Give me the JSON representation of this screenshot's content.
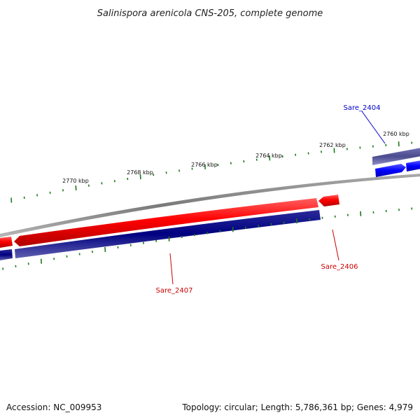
{
  "title": "Salinispora arenicola CNS-205, complete genome",
  "footer": {
    "accession": "Accession: NC_009953",
    "summary": "Topology: circular; Length: 5,786,361 bp; Genes: 4,979"
  },
  "scale_labels": [
    "2760 kbp",
    "2762 kbp",
    "2764 kbp",
    "2766 kbp",
    "2768 kbp",
    "2770 kbp"
  ],
  "genes": [
    {
      "name": "Sare_2404",
      "color": "#0000cc"
    },
    {
      "name": "Sare_2406",
      "color": "#cc0000"
    },
    {
      "name": "Sare_2407",
      "color": "#cc0000"
    }
  ],
  "colors": {
    "forward_gene": "#ff0000",
    "reverse_gene": "#000080",
    "forward_gene_alt": "#0000ff",
    "reverse_gene_alt": "#4b4b8f",
    "backbone": "#888888",
    "ticks": "#1a7a1a"
  }
}
